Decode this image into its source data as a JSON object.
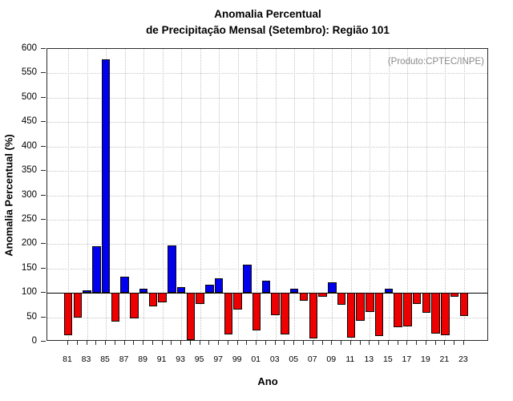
{
  "title": {
    "line1": "Anomalia Percentual",
    "line2": "de Precipitação Mensal (Setembro): Região 101"
  },
  "annotation": "(Produto:CPTEC/INPE)",
  "chart_data": {
    "type": "bar",
    "title": "Anomalia Percentual de Precipitação Mensal (Setembro): Região 101",
    "xlabel": "Ano",
    "ylabel": "Anomalia Percentual (%)",
    "ylim": [
      0,
      600
    ],
    "ytick_step": 50,
    "yticks": [
      0,
      50,
      100,
      150,
      200,
      250,
      300,
      350,
      400,
      450,
      500,
      550,
      600
    ],
    "baseline": 100,
    "grid": "dotted, horizontal every 50, vertical every labeled year",
    "legend_position": "none",
    "bar_colors": {
      "above_baseline": "#0000ee",
      "below_baseline": "#ee0000"
    },
    "xtick_labels": [
      "81",
      "83",
      "85",
      "87",
      "89",
      "91",
      "93",
      "95",
      "97",
      "99",
      "01",
      "03",
      "05",
      "07",
      "09",
      "11",
      "13",
      "15",
      "17",
      "19",
      "21",
      "23"
    ],
    "years": [
      1981,
      1982,
      1983,
      1984,
      1985,
      1986,
      1987,
      1988,
      1989,
      1990,
      1991,
      1992,
      1993,
      1994,
      1995,
      1996,
      1997,
      1998,
      1999,
      2000,
      2001,
      2002,
      2003,
      2004,
      2005,
      2006,
      2007,
      2008,
      2009,
      2010,
      2011,
      2012,
      2013,
      2014,
      2015,
      2016,
      2017,
      2018,
      2019,
      2020,
      2021,
      2022,
      2023
    ],
    "values": [
      13,
      50,
      106,
      195,
      578,
      41,
      133,
      47,
      108,
      73,
      80,
      197,
      111,
      3,
      77,
      116,
      130,
      15,
      66,
      158,
      23,
      125,
      55,
      14,
      108,
      83,
      7,
      92,
      122,
      76,
      8,
      42,
      60,
      12,
      109,
      30,
      31,
      77,
      59,
      17,
      13,
      92,
      52
    ]
  }
}
